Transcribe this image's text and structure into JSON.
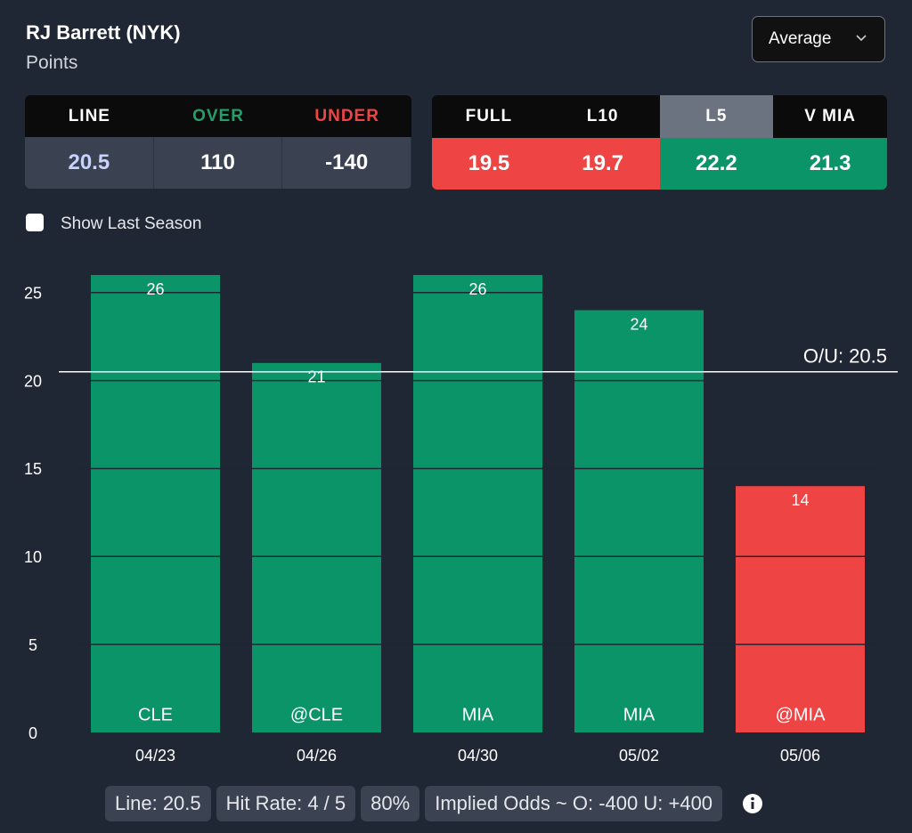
{
  "header": {
    "player": "RJ Barrett (NYK)",
    "stat": "Points",
    "dropdown": "Average"
  },
  "odds_table": {
    "columns": [
      "LINE",
      "OVER",
      "UNDER"
    ],
    "values": [
      20.5,
      110,
      -140
    ]
  },
  "splits_table": {
    "columns": [
      "FULL",
      "L10",
      "L5",
      "V MIA"
    ],
    "values": [
      19.5,
      19.7,
      22.2,
      21.3
    ]
  },
  "checkbox": "Show Last Season",
  "chart_data": {
    "type": "bar",
    "categories": [
      "04/23",
      "04/26",
      "04/30",
      "05/02",
      "05/06"
    ],
    "opponents": [
      "CLE",
      "@CLE",
      "MIA",
      "MIA",
      "@MIA"
    ],
    "values": [
      26,
      21,
      26,
      24,
      14
    ],
    "ylim": [
      0,
      26
    ],
    "yticks": [
      0,
      5,
      10,
      15,
      20,
      25
    ],
    "grid": true,
    "line": 20.5,
    "line_label": "O/U: 20.5",
    "over_color": "#0b9468",
    "under_color": "#ef4444"
  },
  "footer": [
    "Line: 20.5",
    "Hit Rate: 4 / 5",
    "80%",
    "Implied Odds ~ O: -400 U: +400"
  ]
}
